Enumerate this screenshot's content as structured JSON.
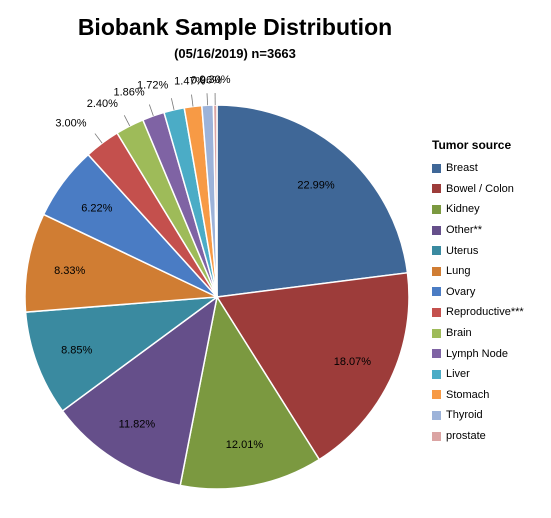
{
  "chart_data": {
    "type": "pie",
    "title": "Biobank Sample Distribution",
    "subtitle": "(05/16/2019) n=3663",
    "legend_title": "Tumor source",
    "legend_position": "right",
    "slices": [
      {
        "label": "Breast",
        "value": 22.99,
        "display": "22.99%",
        "color": "#3f6797"
      },
      {
        "label": "Bowel / Colon",
        "value": 18.07,
        "display": "18.07%",
        "color": "#9d3c3a"
      },
      {
        "label": "Kidney",
        "value": 12.01,
        "display": "12.01%",
        "color": "#7b9940"
      },
      {
        "label": "Other**",
        "value": 11.82,
        "display": "11.82%",
        "color": "#654f8a"
      },
      {
        "label": "Uterus",
        "value": 8.85,
        "display": "8.85%",
        "color": "#3a8aa0"
      },
      {
        "label": "Lung",
        "value": 8.33,
        "display": "8.33%",
        "color": "#d07d33"
      },
      {
        "label": "Ovary",
        "value": 6.22,
        "display": "6.22%",
        "color": "#4a7cc4"
      },
      {
        "label": "Reproductive***",
        "value": 3.0,
        "display": "3.00%",
        "color": "#c4504d"
      },
      {
        "label": "Brain",
        "value": 2.4,
        "display": "2.40%",
        "color": "#9ebb59"
      },
      {
        "label": "Lymph Node",
        "value": 1.86,
        "display": "1.86%",
        "color": "#7f63a4"
      },
      {
        "label": "Liver",
        "value": 1.72,
        "display": "1.72%",
        "color": "#4bacc6"
      },
      {
        "label": "Stomach",
        "value": 1.47,
        "display": "1.47%",
        "color": "#f79a45"
      },
      {
        "label": "Thyroid",
        "value": 0.96,
        "display": "0.96%",
        "color": "#9db3d9"
      },
      {
        "label": "prostate",
        "value": 0.3,
        "display": "0.30%",
        "color": "#dba4a3"
      }
    ]
  }
}
